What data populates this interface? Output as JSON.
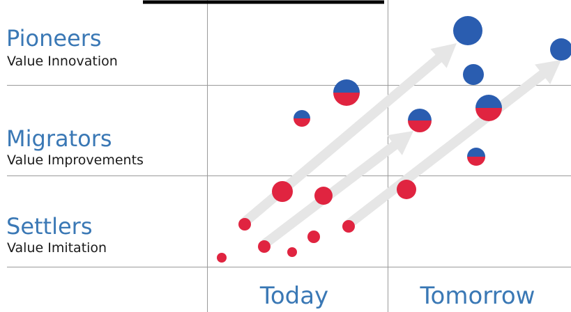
{
  "categories": [
    {
      "title": "Pioneers",
      "subtitle": "Value Innovation"
    },
    {
      "title": "Migrators",
      "subtitle": "Value Improvements"
    },
    {
      "title": "Settlers",
      "subtitle": "Value Imitation"
    }
  ],
  "columns": [
    "Today",
    "Tomorrow"
  ],
  "colors": {
    "blue_text": "#3a78b5",
    "dark_text": "#1a1a1a",
    "blue_dot": "#2a5db0",
    "red_dot": "#e02440",
    "grid": "#9a9a9a",
    "arrow": "#e6e6e6"
  },
  "dot_kinds": [
    "red",
    "split",
    "blue"
  ]
}
